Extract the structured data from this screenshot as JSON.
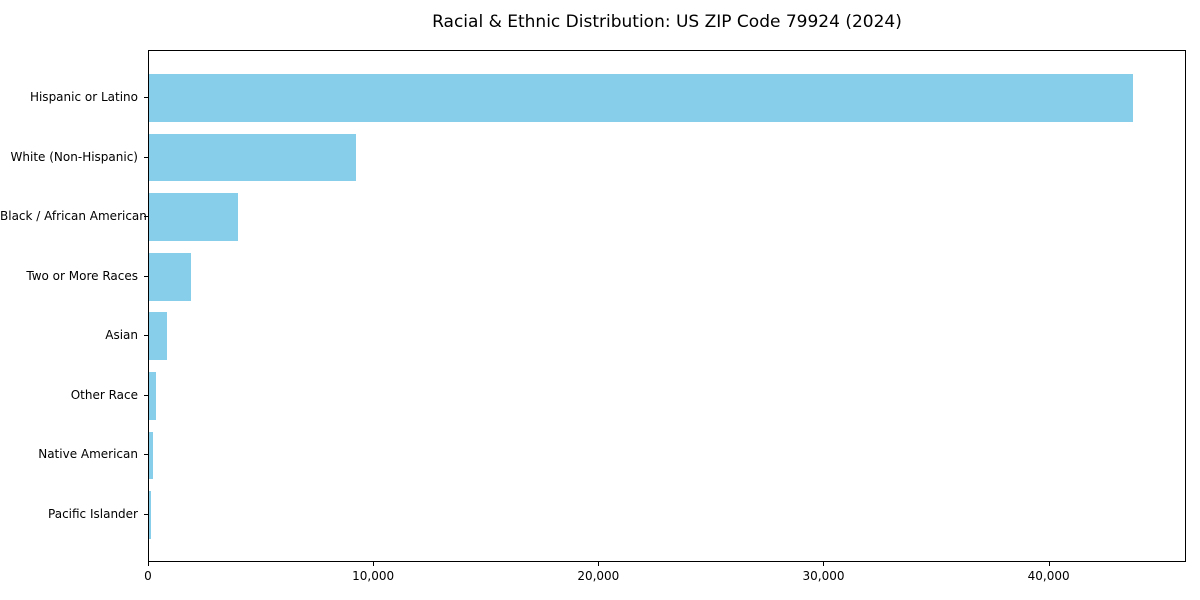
{
  "chart_data": {
    "type": "bar",
    "orientation": "horizontal",
    "title": "Racial & Ethnic Distribution: US ZIP Code 79924 (2024)",
    "xlabel": "",
    "ylabel": "",
    "categories": [
      "Hispanic or Latino",
      "White (Non-Hispanic)",
      "Black / African American",
      "Two or More Races",
      "Asian",
      "Other Race",
      "Native American",
      "Pacific Islander"
    ],
    "values": [
      43800,
      9230,
      3960,
      1870,
      820,
      320,
      180,
      90
    ],
    "xlim": [
      0,
      46100
    ],
    "xticks": [
      {
        "value": 0,
        "label": "0"
      },
      {
        "value": 10000,
        "label": "10,000"
      },
      {
        "value": 20000,
        "label": "20,000"
      },
      {
        "value": 30000,
        "label": "30,000"
      },
      {
        "value": 40000,
        "label": "40,000"
      }
    ],
    "bar_color": "#87CEEB",
    "grid": false,
    "plot_border_color": "#000000",
    "background_color": "#ffffff"
  }
}
